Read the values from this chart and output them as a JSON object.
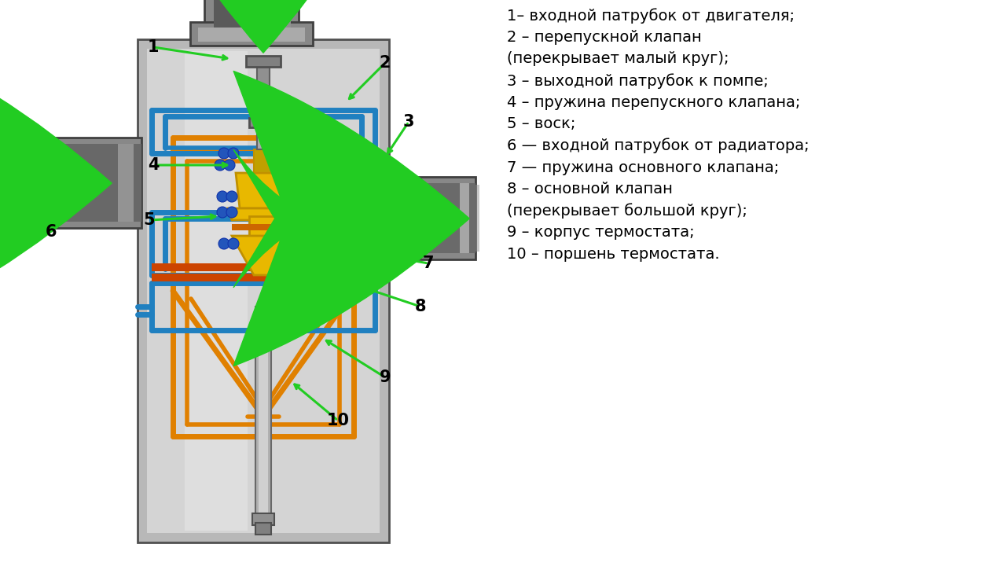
{
  "bg_color": "#ffffff",
  "legend_items": [
    "1– входной патрубок от двигателя;",
    "2 – перепускной клапан",
    "(перекрывает малый круг);",
    "3 – выходной патрубок к помпе;",
    "4 – пружина перепускного клапана;",
    "5 – воск;",
    "6 — входной патрубок от радиатора;",
    "7 — пружина основного клапана;",
    "8 – основной клапан",
    "(перекрывает большой круг);",
    "9 – корпус термостата;",
    "10 – поршень термостата."
  ],
  "legend_fontsize": 14,
  "legend_color": "#000000",
  "arrow_color": "#1aaa1a",
  "number_fontsize": 15,
  "number_color": "#000000"
}
